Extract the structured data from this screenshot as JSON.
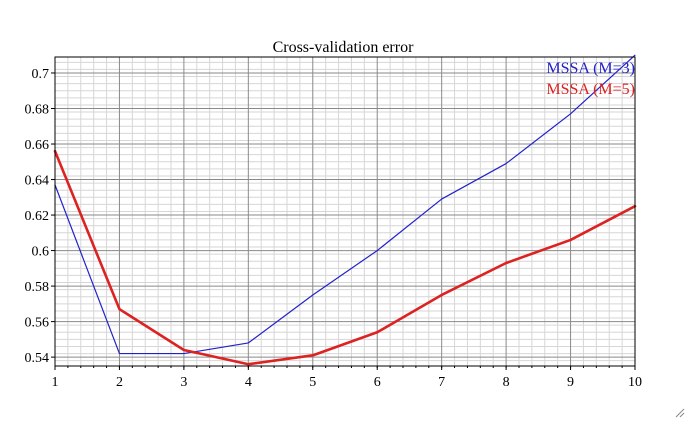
{
  "chart_data": {
    "type": "line",
    "title": "Cross-validation error",
    "xlabel": "",
    "ylabel": "",
    "x": [
      1,
      2,
      3,
      4,
      5,
      6,
      7,
      8,
      9,
      10
    ],
    "xlim": [
      1,
      10
    ],
    "ylim": [
      0.535,
      0.709
    ],
    "x_ticks": [
      1,
      2,
      3,
      4,
      5,
      6,
      7,
      8,
      9,
      10
    ],
    "y_ticks": [
      0.54,
      0.56,
      0.58,
      0.6,
      0.62,
      0.64,
      0.66,
      0.68,
      0.7
    ],
    "y_tick_labels": [
      "0.54",
      "0.56",
      "0.58",
      "0.6",
      "0.62",
      "0.64",
      "0.66",
      "0.68",
      "0.7"
    ],
    "grid": true,
    "legend_position": "top-right",
    "series": [
      {
        "name": "MSSA (M=3)",
        "color": "#2222cc",
        "values": [
          0.637,
          0.542,
          0.542,
          0.548,
          0.575,
          0.6,
          0.629,
          0.649,
          0.677,
          0.71
        ]
      },
      {
        "name": "MSSA (M=5)",
        "color": "#dd2222",
        "values": [
          0.656,
          0.567,
          0.544,
          0.536,
          0.541,
          0.554,
          0.575,
          0.593,
          0.606,
          0.625
        ]
      }
    ]
  }
}
